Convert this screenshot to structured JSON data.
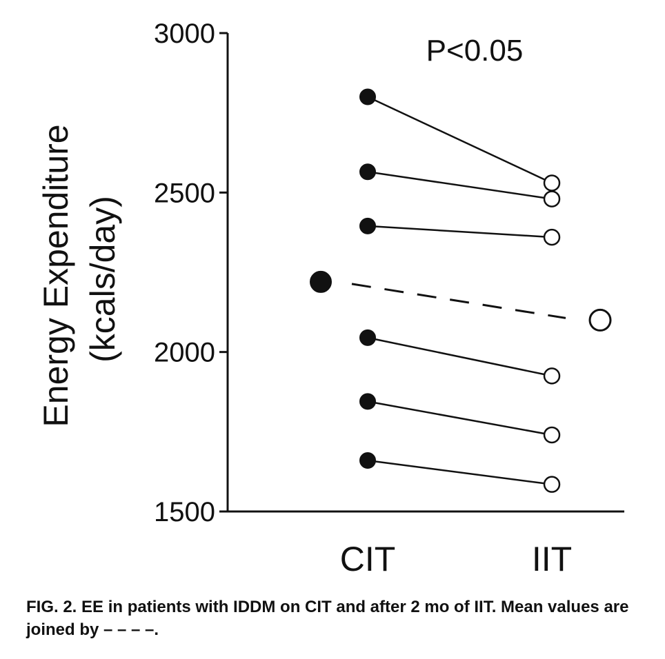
{
  "chart_data": {
    "type": "scatter",
    "categories": [
      "CIT",
      "IIT"
    ],
    "ylabel_line1": "Energy Expenditure",
    "ylabel_line2": "(kcals/day)",
    "ylim": [
      1500,
      3000
    ],
    "yticks": [
      "1500",
      "2000",
      "2500",
      "3000"
    ],
    "annotation": "P<0.05",
    "grid": false,
    "legend": "none",
    "patients": [
      {
        "cit": 2800,
        "iit": 2530
      },
      {
        "cit": 2565,
        "iit": 2480
      },
      {
        "cit": 2395,
        "iit": 2360
      },
      {
        "cit": 2045,
        "iit": 1925
      },
      {
        "cit": 1845,
        "iit": 1740
      },
      {
        "cit": 1660,
        "iit": 1585
      }
    ],
    "mean": {
      "cit": 2220,
      "iit": 2100
    },
    "colors": {
      "cit_marker": "#111111",
      "iit_marker": "#ffffff",
      "line": "#111111"
    }
  },
  "caption": "FIG. 2. EE in patients with IDDM on CIT and after 2 mo of IIT. Mean values are joined by – – – –."
}
